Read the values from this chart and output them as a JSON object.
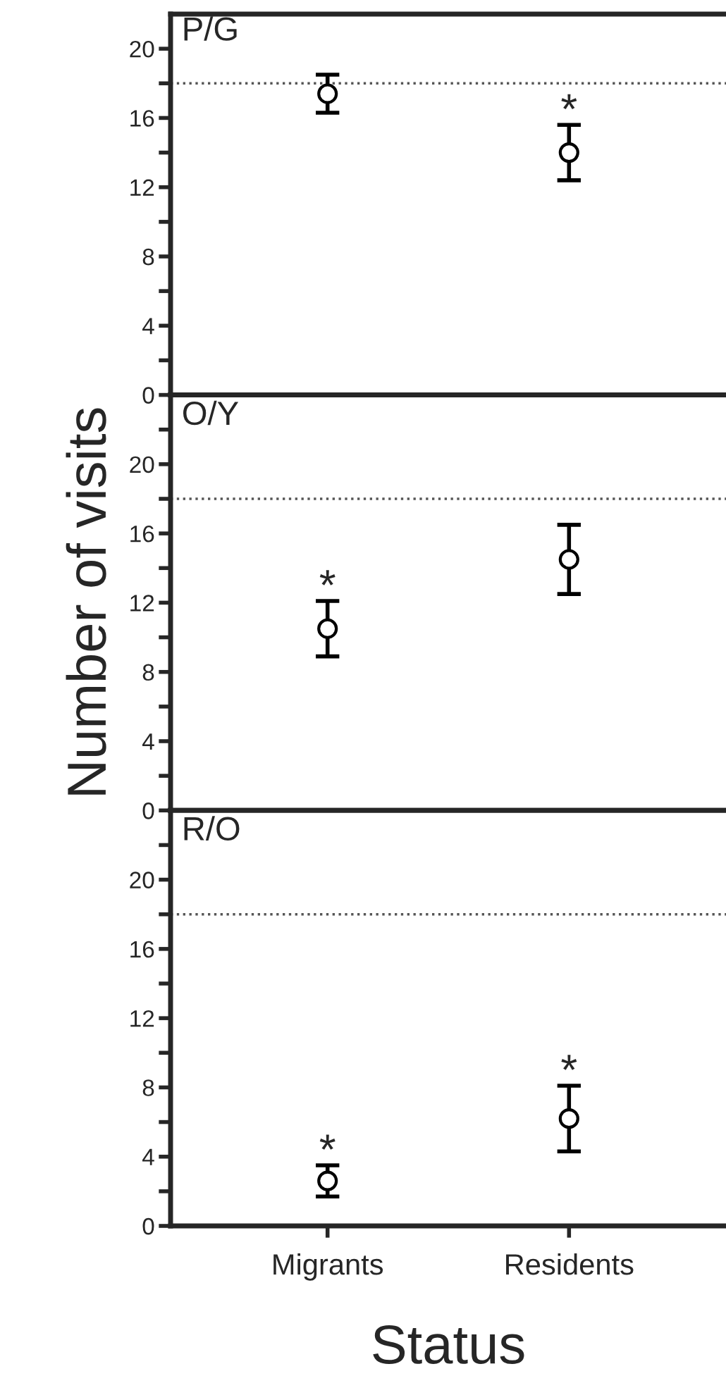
{
  "chart_data": [
    {
      "type": "scatter",
      "title": "P/G",
      "categories": [
        null,
        null
      ],
      "series": [
        {
          "color": "#000000",
          "values": [
            17.4,
            14.0
          ],
          "errors": [
            1.1,
            1.6
          ],
          "value_labels": [
            null,
            "*"
          ]
        }
      ],
      "ylim": [
        0,
        22
      ],
      "yticks": [
        0,
        {
          "value": 2,
          "label": null
        },
        4,
        {
          "value": 6,
          "label": null
        },
        8,
        {
          "value": 10,
          "label": null
        },
        12,
        {
          "value": 14,
          "label": null
        },
        16,
        {
          "value": 18,
          "label": null
        },
        20
      ],
      "ref_lines": [
        {
          "axis": "y",
          "value": 18,
          "line_style": "dotted",
          "color": "#555555"
        }
      ],
      "marker": "circle",
      "tick_labels": "y"
    },
    {
      "type": "scatter",
      "title": "O/Y",
      "ylabel": "Number of visits",
      "categories": [
        null,
        null
      ],
      "series": [
        {
          "color": "#000000",
          "values": [
            10.5,
            14.5
          ],
          "errors": [
            1.6,
            2.0
          ],
          "value_labels": [
            "*",
            null
          ]
        }
      ],
      "ylim": [
        0,
        24
      ],
      "yticks": [
        0,
        {
          "value": 2,
          "label": null
        },
        4,
        {
          "value": 6,
          "label": null
        },
        8,
        {
          "value": 10,
          "label": null
        },
        12,
        {
          "value": 14,
          "label": null
        },
        16,
        {
          "value": 18,
          "label": null
        },
        20,
        {
          "value": 22,
          "label": null
        }
      ],
      "ref_lines": [
        {
          "axis": "y",
          "value": 18,
          "line_style": "dotted",
          "color": "#555555"
        }
      ],
      "marker": "circle",
      "tick_labels": "y"
    },
    {
      "type": "scatter",
      "title": "R/O",
      "xlabel": "Status",
      "categories": [
        "Migrants",
        "Residents"
      ],
      "series": [
        {
          "color": "#000000",
          "values": [
            2.6,
            6.2
          ],
          "errors": [
            0.9,
            1.9
          ],
          "value_labels": [
            "*",
            "*"
          ]
        }
      ],
      "ylim": [
        0,
        24
      ],
      "yticks": [
        0,
        {
          "value": 2,
          "label": null
        },
        4,
        {
          "value": 6,
          "label": null
        },
        8,
        {
          "value": 10,
          "label": null
        },
        12,
        {
          "value": 14,
          "label": null
        },
        16,
        {
          "value": 18,
          "label": null
        },
        20,
        {
          "value": 22,
          "label": null
        }
      ],
      "ref_lines": [
        {
          "axis": "y",
          "value": 18,
          "line_style": "dotted",
          "color": "#555555"
        }
      ],
      "marker": "circle"
    }
  ]
}
